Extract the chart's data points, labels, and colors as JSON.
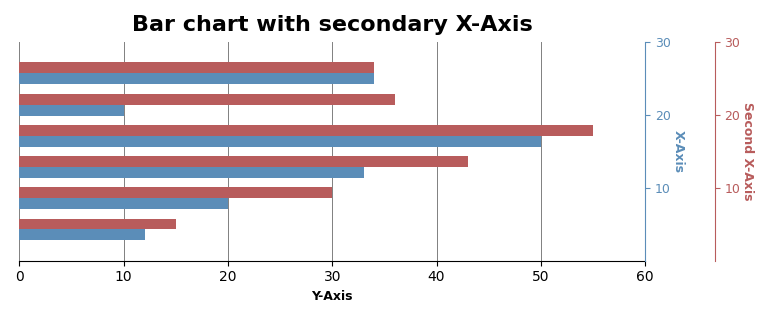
{
  "title": "Bar chart with secondary X-Axis",
  "blue_values": [
    34,
    10,
    50,
    33,
    20,
    12
  ],
  "red_values": [
    34,
    36,
    55,
    43,
    30,
    15
  ],
  "blue_color": "#5b8db8",
  "red_color": "#b85c5c",
  "primary_xlabel": "Y-Axis",
  "primary_xlim": [
    0,
    60
  ],
  "primary_xticks": [
    0,
    10,
    20,
    30,
    40,
    50,
    60
  ],
  "secondary_label_blue": "X-Axis",
  "secondary_label_red": "Second X-Axis",
  "secondary_ylim": [
    0,
    30
  ],
  "secondary_yticks": [
    10,
    20,
    30
  ],
  "bar_height": 0.35,
  "figsize": [
    7.69,
    3.18
  ],
  "dpi": 100,
  "title_fontsize": 16,
  "title_fontweight": "bold",
  "axis_label_fontsize": 9,
  "tick_fontsize": 9
}
